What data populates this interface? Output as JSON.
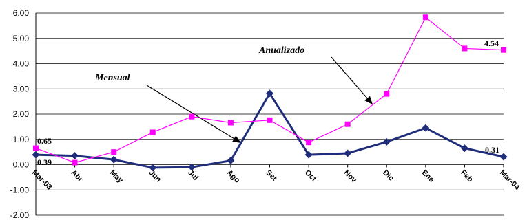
{
  "chart_data": {
    "type": "line",
    "categories": [
      "Mar-03",
      "Abr",
      "May",
      "Jun",
      "Jul",
      "Ago",
      "Set",
      "Oct",
      "Nov",
      "Dic",
      "Ene",
      "Feb",
      "Mar-04"
    ],
    "ylim": [
      -2,
      6
    ],
    "yticks": [
      "6.00",
      "5.00",
      "4.00",
      "3.00",
      "2.00",
      "1.00",
      "0.00",
      "-1.00",
      "-2.00"
    ],
    "grid": true,
    "series": [
      {
        "name": "Mensual",
        "color": "#1f2d7a",
        "marker": "diamond",
        "values": [
          0.39,
          0.35,
          0.2,
          -0.12,
          -0.1,
          0.16,
          2.82,
          0.39,
          0.45,
          0.9,
          1.45,
          0.65,
          0.31
        ]
      },
      {
        "name": "Anualizado",
        "color": "#ff00ff",
        "marker": "square",
        "values": [
          0.65,
          0.08,
          0.5,
          1.28,
          1.9,
          1.66,
          1.76,
          0.88,
          1.6,
          2.8,
          5.83,
          4.6,
          4.54
        ]
      }
    ],
    "data_labels": [
      {
        "text": "0.65"
      },
      {
        "text": "0.39"
      },
      {
        "text": "4.54"
      },
      {
        "text": "0.31"
      }
    ],
    "annotations": [
      {
        "text": "Mensual"
      },
      {
        "text": "Anualizado"
      }
    ]
  }
}
